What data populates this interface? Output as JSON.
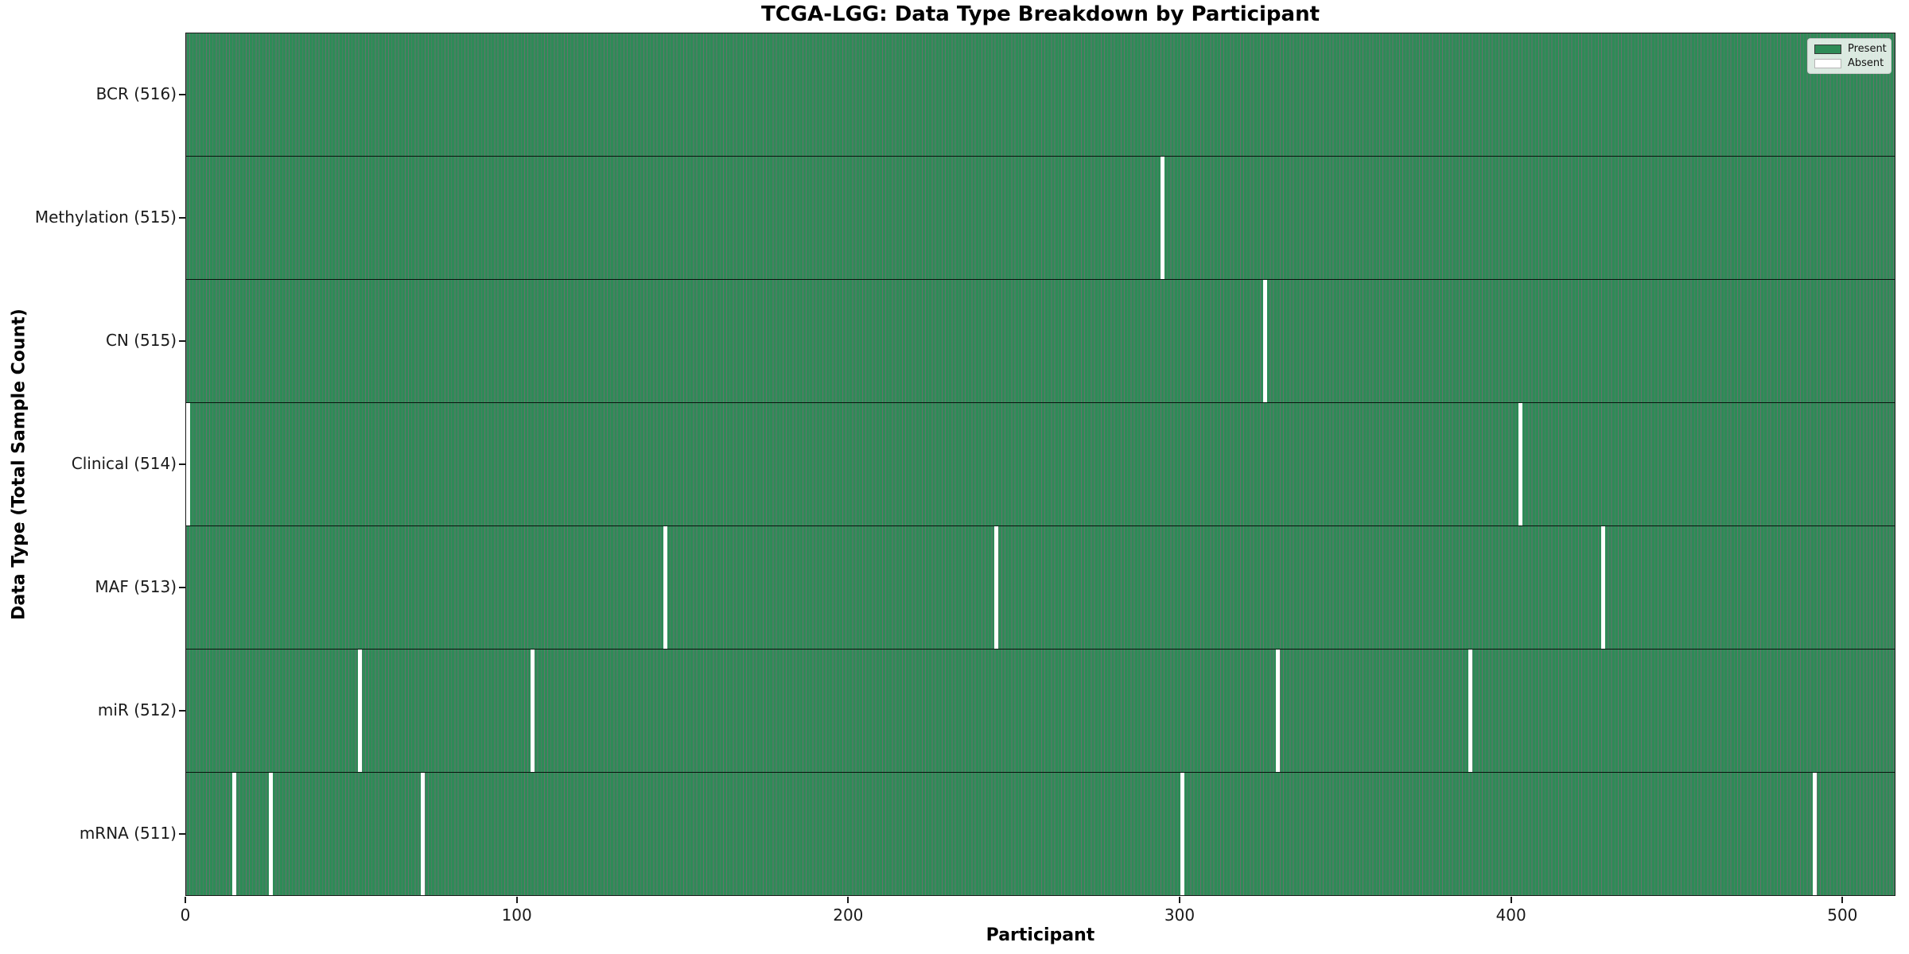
{
  "chart_data": {
    "type": "heatmap",
    "title": "TCGA-LGG: Data Type Breakdown by Participant",
    "xlabel": "Participant",
    "ylabel": "Data Type (Total Sample Count)",
    "x_ticks": [
      0,
      100,
      200,
      300,
      400,
      500
    ],
    "x_range": [
      0,
      516
    ],
    "n_participants": 516,
    "grid": false,
    "legend_position": "upper right",
    "legend": [
      {
        "label": "Present",
        "color": "#2e8b57"
      },
      {
        "label": "Absent",
        "color": "#ffffff"
      }
    ],
    "colors": {
      "present_fill": "#2e8b57",
      "absent_fill": "#ffffff",
      "bar_edge": "#0a1e12",
      "spine": "#1a1a1a"
    },
    "rows": [
      {
        "label": "BCR (516)",
        "data_type": "BCR",
        "total": 516,
        "absent_indices": []
      },
      {
        "label": "Methylation (515)",
        "data_type": "Methylation",
        "total": 515,
        "absent_indices": [
          294
        ]
      },
      {
        "label": "CN (515)",
        "data_type": "CN",
        "total": 515,
        "absent_indices": [
          325
        ]
      },
      {
        "label": "Clinical (514)",
        "data_type": "Clinical",
        "total": 514,
        "absent_indices": [
          0,
          402
        ]
      },
      {
        "label": "MAF (513)",
        "data_type": "MAF",
        "total": 513,
        "absent_indices": [
          144,
          244,
          427
        ]
      },
      {
        "label": "miR (512)",
        "data_type": "miR",
        "total": 512,
        "absent_indices": [
          52,
          104,
          329,
          387
        ]
      },
      {
        "label": "mRNA (511)",
        "data_type": "mRNA",
        "total": 511,
        "absent_indices": [
          14,
          25,
          71,
          300,
          491
        ]
      }
    ]
  }
}
